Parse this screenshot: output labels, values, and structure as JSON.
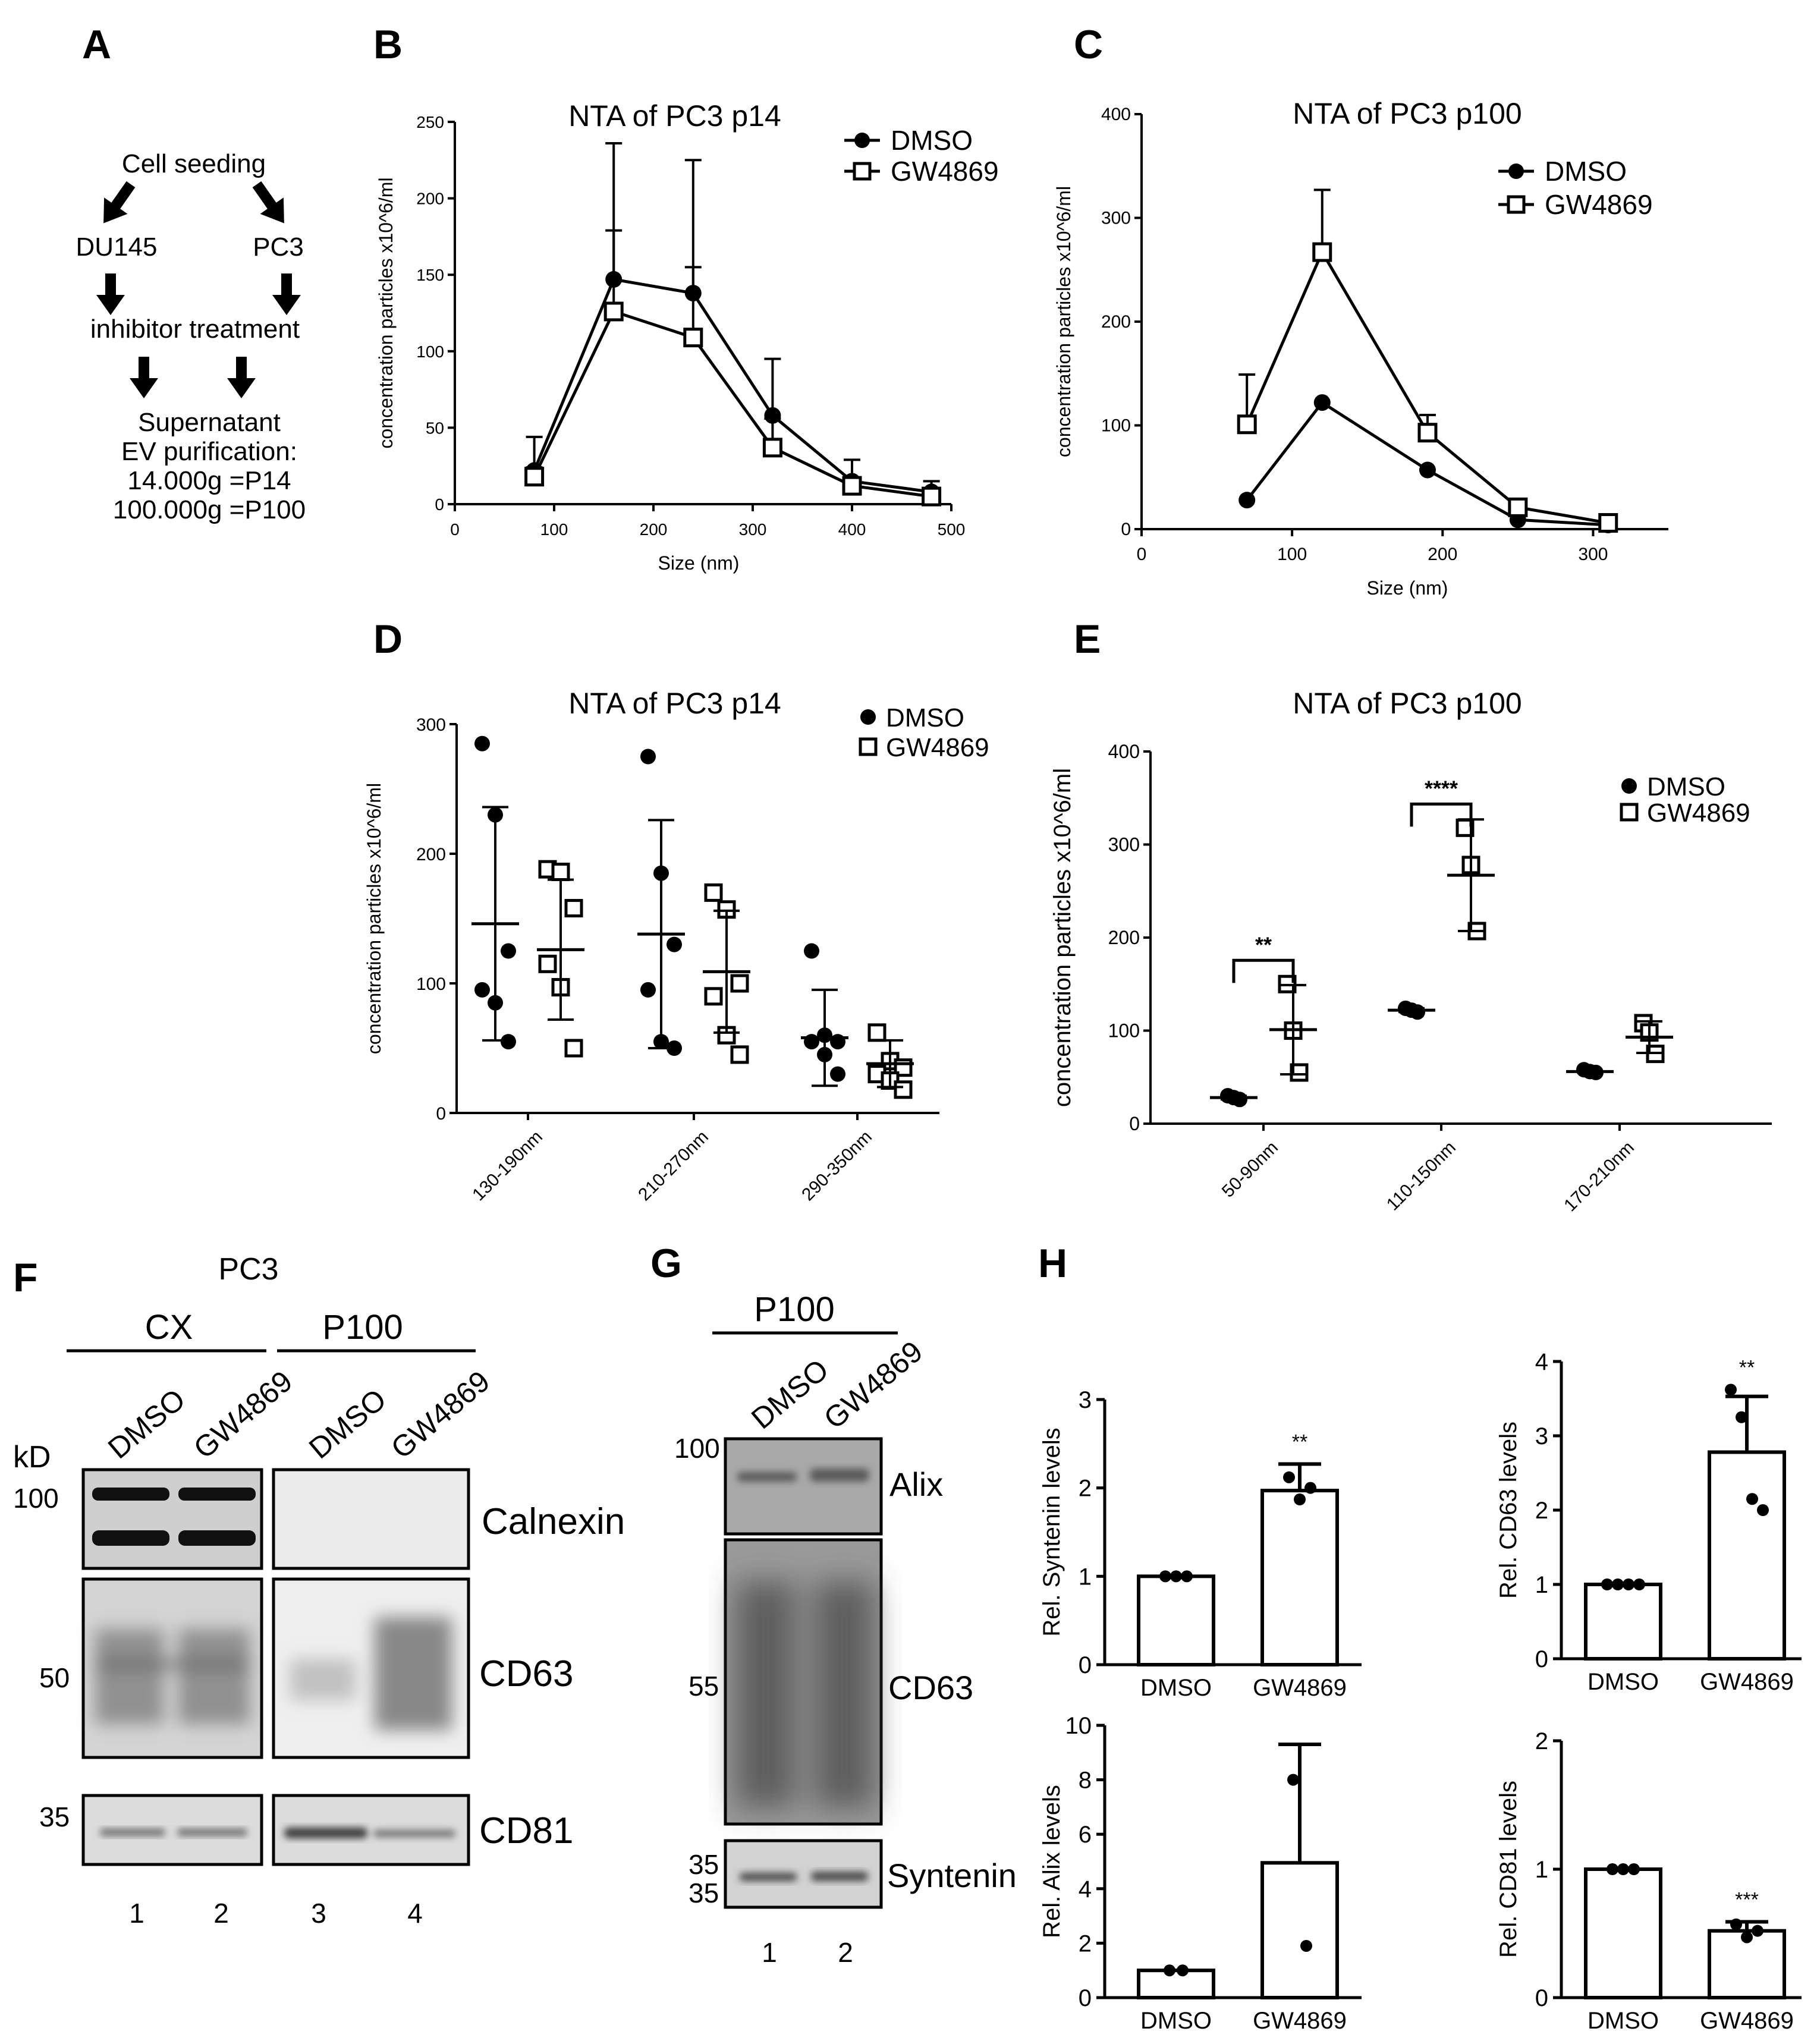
{
  "panels": {
    "A": {
      "letter": "A",
      "cell_seeding": "Cell seeding",
      "du145": "DU145",
      "pc3": "PC3",
      "inhibitor": "inhibitor treatment",
      "supernatant": "Supernatant",
      "ev_purification": "EV purification:",
      "p14_line": "14.000g =P14",
      "p100_line": "100.000g =P100"
    },
    "B": {
      "letter": "B"
    },
    "C": {
      "letter": "C"
    },
    "D": {
      "letter": "D"
    },
    "E": {
      "letter": "E"
    },
    "F": {
      "letter": "F",
      "cell_line": "PC3",
      "group_cx": "CX",
      "group_p100": "P100",
      "kd_label": "kD",
      "lanes": [
        "DMSO",
        "GW4869",
        "DMSO",
        "GW4869"
      ],
      "markers": [
        "100",
        "50",
        "35"
      ],
      "proteins": [
        "Calnexin",
        "CD63",
        "CD81"
      ],
      "lane_numbers": [
        "1",
        "2",
        "3",
        "4"
      ]
    },
    "G": {
      "letter": "G",
      "group": "P100",
      "lanes": [
        "DMSO",
        "GW4869"
      ],
      "markers": [
        "100",
        "55",
        "35",
        "35"
      ],
      "proteins": [
        "Alix",
        "CD63",
        "Syntenin"
      ],
      "lane_numbers": [
        "1",
        "2"
      ]
    },
    "H": {
      "letter": "H"
    }
  },
  "chart_data": [
    {
      "id": "B",
      "type": "line",
      "title": "NTA of PC3 p14",
      "xlabel": "Size (nm)",
      "ylabel": "concentration particles x10^6/ml",
      "xlim": [
        0,
        500
      ],
      "ylim": [
        0,
        250
      ],
      "xticks": [
        0,
        100,
        200,
        300,
        400,
        500
      ],
      "yticks": [
        0,
        50,
        100,
        150,
        200,
        250
      ],
      "legend_position": "top-right",
      "series": [
        {
          "name": "DMSO",
          "marker": "circle",
          "x": [
            80,
            160,
            240,
            320,
            400,
            480
          ],
          "y": [
            22,
            147,
            138,
            58,
            15,
            8
          ],
          "err": [
            22,
            89,
            87,
            37,
            14,
            7
          ]
        },
        {
          "name": "GW4869",
          "marker": "square",
          "x": [
            80,
            160,
            240,
            320,
            400,
            480
          ],
          "y": [
            18,
            126,
            109,
            37,
            12,
            5
          ],
          "err": [
            6,
            53,
            46,
            19,
            5,
            4
          ]
        }
      ]
    },
    {
      "id": "C",
      "type": "line",
      "title": "NTA of PC3 p100",
      "xlabel": "Size (nm)",
      "ylabel": "concentration particles x10^6/ml",
      "xlim": [
        0,
        350
      ],
      "ylim": [
        0,
        400
      ],
      "xticks": [
        0,
        100,
        200,
        300
      ],
      "yticks": [
        0,
        100,
        200,
        300,
        400
      ],
      "legend_position": "top-right",
      "series": [
        {
          "name": "DMSO",
          "marker": "circle",
          "x": [
            70,
            120,
            190,
            250,
            310
          ],
          "y": [
            28,
            122,
            57,
            9,
            4
          ],
          "err": [
            0,
            0,
            0,
            0,
            0
          ]
        },
        {
          "name": "GW4869",
          "marker": "square",
          "x": [
            70,
            120,
            190,
            250,
            310
          ],
          "y": [
            101,
            267,
            93,
            21,
            6
          ],
          "err": [
            48,
            60,
            17,
            0,
            0
          ]
        }
      ]
    },
    {
      "id": "D",
      "type": "scatter",
      "title": "NTA of PC3 p14",
      "ylabel": "concentration particles x10^6/ml",
      "categories": [
        "130-190nm",
        "210-270nm",
        "290-350nm"
      ],
      "ylim": [
        0,
        300
      ],
      "yticks": [
        0,
        100,
        200,
        300
      ],
      "legend_position": "top-right",
      "series": [
        {
          "name": "DMSO",
          "marker": "circle",
          "points": [
            [
              285,
              230,
              125,
              95,
              85,
              55
            ],
            [
              275,
              185,
              130,
              95,
              55,
              50
            ],
            [
              125,
              60,
              55,
              55,
              45,
              30
            ]
          ],
          "mean": [
            146,
            138,
            58
          ],
          "sd": [
            90,
            88,
            37
          ]
        },
        {
          "name": "GW4869",
          "marker": "square",
          "points": [
            [
              188,
              186,
              158,
              115,
              97,
              50
            ],
            [
              170,
              157,
              100,
              90,
              60,
              45
            ],
            [
              62,
              40,
              35,
              30,
              25,
              18
            ]
          ],
          "mean": [
            126,
            109,
            38
          ],
          "sd": [
            54,
            47,
            18
          ]
        }
      ]
    },
    {
      "id": "E",
      "type": "scatter",
      "title": "NTA of PC3 p100",
      "ylabel": "concentration particles x10^6/ml",
      "categories": [
        "50-90nm",
        "110-150nm",
        "170-210nm"
      ],
      "ylim": [
        0,
        400
      ],
      "yticks": [
        0,
        100,
        200,
        300,
        400
      ],
      "legend_position": "top-right",
      "significance": [
        {
          "category": "50-90nm",
          "label": "**"
        },
        {
          "category": "110-150nm",
          "label": "****"
        }
      ],
      "series": [
        {
          "name": "DMSO",
          "marker": "circle",
          "points": [
            [
              30,
              28,
              26
            ],
            [
              124,
              122,
              120
            ],
            [
              58,
              56,
              55
            ]
          ],
          "mean": [
            28,
            122,
            56
          ],
          "sd": [
            2,
            2,
            1
          ]
        },
        {
          "name": "GW4869",
          "marker": "square",
          "points": [
            [
              150,
              100,
              55
            ],
            [
              318,
              278,
              207
            ],
            [
              108,
              98,
              75
            ]
          ],
          "mean": [
            101,
            267,
            93
          ],
          "sd": [
            48,
            60,
            17
          ]
        }
      ]
    },
    {
      "id": "H1",
      "type": "bar",
      "ylabel": "Rel. Syntenin levels",
      "categories": [
        "DMSO",
        "GW4869"
      ],
      "values": [
        1,
        1.97
      ],
      "err": [
        0,
        0.3
      ],
      "points": [
        [
          1,
          1,
          1
        ],
        [
          2.12,
          1.87,
          2.0
        ]
      ],
      "ylim": [
        0,
        3
      ],
      "yticks": [
        0,
        1,
        2,
        3
      ],
      "significance": [
        "",
        "**"
      ]
    },
    {
      "id": "H2",
      "type": "bar",
      "ylabel": "Rel. CD63 levels",
      "categories": [
        "DMSO",
        "GW4869"
      ],
      "values": [
        1,
        2.78
      ],
      "err": [
        0,
        0.75
      ],
      "points": [
        [
          1,
          1,
          1,
          1
        ],
        [
          3.62,
          3.25,
          2.15,
          2.0
        ]
      ],
      "ylim": [
        0,
        4
      ],
      "yticks": [
        0,
        1,
        2,
        3,
        4
      ],
      "significance": [
        "",
        "**"
      ]
    },
    {
      "id": "H3",
      "type": "bar",
      "ylabel": "Rel. Alix levels",
      "categories": [
        "DMSO",
        "GW4869"
      ],
      "values": [
        1,
        4.95
      ],
      "err": [
        0,
        4.35
      ],
      "points": [
        [
          1,
          1
        ],
        [
          8.0,
          1.9
        ]
      ],
      "ylim": [
        0,
        10
      ],
      "yticks": [
        0,
        2,
        4,
        6,
        8,
        10
      ],
      "significance": [
        "",
        ""
      ]
    },
    {
      "id": "H4",
      "type": "bar",
      "ylabel": "Rel. CD81 levels",
      "categories": [
        "DMSO",
        "GW4869"
      ],
      "values": [
        1,
        0.52
      ],
      "err": [
        0,
        0.07
      ],
      "points": [
        [
          1,
          1,
          1
        ],
        [
          0.57,
          0.47,
          0.52
        ]
      ],
      "ylim": [
        0,
        2
      ],
      "yticks": [
        0,
        1,
        2
      ],
      "significance": [
        "",
        "***"
      ]
    }
  ]
}
